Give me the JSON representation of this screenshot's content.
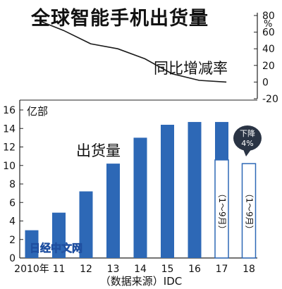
{
  "chart_data": {
    "type": "bar",
    "title": "全球智能手机出货量",
    "source": "（数据来源）IDC",
    "watermark": "日经中文网",
    "bar_color": "#2d68b6",
    "categories": [
      "2010年",
      "11",
      "12",
      "13",
      "14",
      "15",
      "16",
      "17",
      "18"
    ],
    "bar_axis": {
      "unit": "亿部",
      "ylim": [
        0,
        16
      ],
      "ticks": [
        0,
        2,
        4,
        6,
        8,
        10,
        12,
        14,
        16
      ]
    },
    "series": [
      {
        "name": "出货量",
        "values": [
          3.0,
          4.9,
          7.2,
          10.2,
          13.0,
          14.4,
          14.7,
          14.7,
          null
        ]
      },
      {
        "name": "",
        "values": [
          null,
          null,
          null,
          null,
          null,
          null,
          null,
          10.6,
          10.2
        ]
      }
    ],
    "period_notes": [
      "（1～9月）",
      "（1～9月）"
    ],
    "line_axis": {
      "unit": "%",
      "ylim": [
        -20,
        80
      ],
      "ticks": [
        80,
        60,
        40,
        20,
        0,
        -20
      ]
    },
    "line_series": {
      "name": "同比增减率",
      "values": [
        75,
        62,
        46,
        40,
        28,
        10,
        2,
        0
      ]
    },
    "callout": {
      "line1": "下降",
      "line2": "4%"
    }
  }
}
